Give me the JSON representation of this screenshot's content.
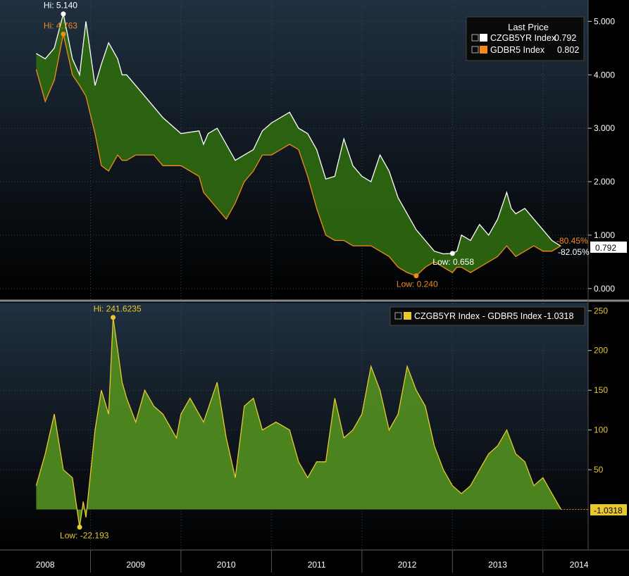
{
  "chart_data": [
    {
      "type": "area",
      "panel": "top",
      "legend": {
        "title": "Last Price",
        "placement": "top-right",
        "entries": [
          {
            "name": "CZGB5YR Index",
            "value": "0.792",
            "color": "#ffffff"
          },
          {
            "name": "GDBR5 Index",
            "value": "0.802",
            "color": "#f28a1e"
          }
        ]
      },
      "ylim": [
        -0.2,
        5.4
      ],
      "y_ticks": [
        "5.000",
        "4.000",
        "3.000",
        "2.000",
        "1.000",
        "0.000"
      ],
      "y_tick_values": [
        5,
        4,
        3,
        2,
        1,
        0
      ],
      "series": [
        {
          "name": "CZGB5YR Index",
          "color": "#ffffff",
          "x": [
            2007.9,
            2008.0,
            2008.1,
            2008.2,
            2008.3,
            2008.38,
            2008.45,
            2008.55,
            2008.62,
            2008.7,
            2008.8,
            2008.85,
            2008.9,
            2009.0,
            2009.1,
            2009.2,
            2009.3,
            2009.5,
            2009.7,
            2009.75,
            2009.8,
            2009.9,
            2010.0,
            2010.1,
            2010.2,
            2010.3,
            2010.4,
            2010.5,
            2010.6,
            2010.7,
            2010.8,
            2010.9,
            2011.0,
            2011.1,
            2011.2,
            2011.3,
            2011.4,
            2011.5,
            2011.6,
            2011.7,
            2011.8,
            2011.9,
            2012.0,
            2012.1,
            2012.2,
            2012.3,
            2012.4,
            2012.5,
            2012.55,
            2012.6,
            2012.7,
            2012.8,
            2012.9,
            2013.0,
            2013.1,
            2013.15,
            2013.2,
            2013.3,
            2013.4,
            2013.5,
            2013.6,
            2013.7
          ],
          "values": [
            4.4,
            4.3,
            4.5,
            5.14,
            4.3,
            4.0,
            5.0,
            3.8,
            4.2,
            4.6,
            4.3,
            4.0,
            4.0,
            3.8,
            3.6,
            3.4,
            3.2,
            2.9,
            2.95,
            2.7,
            2.9,
            3.0,
            2.7,
            2.4,
            2.5,
            2.6,
            2.95,
            3.1,
            3.2,
            3.3,
            3.0,
            2.9,
            2.6,
            2.05,
            2.1,
            2.8,
            2.3,
            2.1,
            2.0,
            2.5,
            2.2,
            1.7,
            1.4,
            1.1,
            0.9,
            0.7,
            0.65,
            0.658,
            0.7,
            1.0,
            0.9,
            1.2,
            1.0,
            1.3,
            1.8,
            1.5,
            1.4,
            1.5,
            1.3,
            1.1,
            0.9,
            0.792
          ]
        },
        {
          "name": "GDBR5 Index",
          "color": "#f28a1e",
          "x": [
            2007.9,
            2008.0,
            2008.1,
            2008.2,
            2008.3,
            2008.38,
            2008.45,
            2008.55,
            2008.62,
            2008.7,
            2008.8,
            2008.85,
            2008.9,
            2009.0,
            2009.1,
            2009.2,
            2009.3,
            2009.5,
            2009.7,
            2009.75,
            2009.8,
            2009.9,
            2010.0,
            2010.1,
            2010.2,
            2010.3,
            2010.4,
            2010.5,
            2010.6,
            2010.7,
            2010.8,
            2010.9,
            2011.0,
            2011.1,
            2011.2,
            2011.3,
            2011.4,
            2011.5,
            2011.6,
            2011.7,
            2011.8,
            2011.9,
            2012.0,
            2012.1,
            2012.2,
            2012.3,
            2012.4,
            2012.5,
            2012.55,
            2012.6,
            2012.7,
            2012.8,
            2012.9,
            2013.0,
            2013.1,
            2013.15,
            2013.2,
            2013.3,
            2013.4,
            2013.5,
            2013.6,
            2013.7
          ],
          "values": [
            4.1,
            3.5,
            3.9,
            4.763,
            4.0,
            3.8,
            3.6,
            2.9,
            2.3,
            2.2,
            2.5,
            2.4,
            2.4,
            2.5,
            2.5,
            2.5,
            2.3,
            2.3,
            2.1,
            1.8,
            1.7,
            1.5,
            1.3,
            1.6,
            2.0,
            2.2,
            2.5,
            2.5,
            2.6,
            2.7,
            2.6,
            2.1,
            1.5,
            1.0,
            0.9,
            0.9,
            0.8,
            0.8,
            0.8,
            0.7,
            0.6,
            0.4,
            0.3,
            0.24,
            0.4,
            0.5,
            0.4,
            0.3,
            0.4,
            0.4,
            0.3,
            0.4,
            0.5,
            0.6,
            0.8,
            0.7,
            0.6,
            0.7,
            0.8,
            0.7,
            0.7,
            0.802
          ]
        }
      ],
      "annotations": [
        {
          "text": "Hi: 5.140",
          "x": 2008.2,
          "y": 5.14,
          "color": "#ffffff"
        },
        {
          "text": "Hi: 4.763",
          "x": 2008.2,
          "y": 4.763,
          "color": "#f28a1e"
        },
        {
          "text": "Low: 0.658",
          "x": 2012.5,
          "y": 0.658,
          "color": "#ffffff"
        },
        {
          "text": "Low: 0.240",
          "x": 2012.1,
          "y": 0.24,
          "color": "#f28a1e"
        },
        {
          "text": "-80.45%",
          "color": "#f28a1e"
        },
        {
          "text": "-82.05%",
          "color": "#ffffff"
        }
      ],
      "last_value_tag": "0.792"
    },
    {
      "type": "area",
      "panel": "bottom",
      "legend": {
        "placement": "top-right",
        "entries": [
          {
            "name": "CZGB5YR Index - GDBR5 Index",
            "value": "-1.0318",
            "color": "#e8c830"
          }
        ]
      },
      "ylim": [
        -50,
        260
      ],
      "y_ticks": [
        "250",
        "200",
        "150",
        "100",
        "50"
      ],
      "y_tick_values": [
        250,
        200,
        150,
        100,
        50
      ],
      "series": [
        {
          "name": "CZGB5YR Index - GDBR5 Index",
          "color": "#e8c830",
          "x": [
            2007.9,
            2008.0,
            2008.1,
            2008.2,
            2008.3,
            2008.38,
            2008.42,
            2008.45,
            2008.55,
            2008.62,
            2008.7,
            2008.75,
            2008.85,
            2008.9,
            2009.0,
            2009.1,
            2009.2,
            2009.3,
            2009.45,
            2009.5,
            2009.6,
            2009.75,
            2009.9,
            2010.0,
            2010.1,
            2010.2,
            2010.3,
            2010.4,
            2010.55,
            2010.7,
            2010.8,
            2010.9,
            2011.0,
            2011.1,
            2011.2,
            2011.3,
            2011.4,
            2011.5,
            2011.6,
            2011.7,
            2011.8,
            2011.9,
            2012.0,
            2012.1,
            2012.2,
            2012.3,
            2012.4,
            2012.5,
            2012.6,
            2012.7,
            2012.8,
            2012.9,
            2013.0,
            2013.1,
            2013.2,
            2013.3,
            2013.4,
            2013.5,
            2013.6,
            2013.7
          ],
          "values": [
            30,
            70,
            120,
            50,
            40,
            -22.193,
            10,
            -10,
            100,
            150,
            120,
            241.6235,
            160,
            140,
            110,
            150,
            130,
            120,
            90,
            120,
            140,
            110,
            160,
            90,
            40,
            130,
            140,
            100,
            110,
            100,
            60,
            40,
            60,
            60,
            140,
            90,
            100,
            120,
            180,
            150,
            100,
            120,
            180,
            150,
            130,
            80,
            50,
            30,
            20,
            30,
            50,
            70,
            80,
            100,
            70,
            60,
            30,
            40,
            20,
            0
          ]
        }
      ],
      "annotations": [
        {
          "text": "Hi: 241.6235",
          "x": 2008.75,
          "y": 241.6235,
          "color": "#e8c830"
        },
        {
          "text": "Low: -22.193",
          "x": 2008.38,
          "y": -22.193,
          "color": "#e8c830"
        }
      ],
      "last_value_tag": "-1.0318"
    }
  ],
  "x_axis": {
    "labels": [
      "2008",
      "2009",
      "2010",
      "2011",
      "2012",
      "2013",
      "2014"
    ],
    "label_years": [
      2008.0,
      2009.0,
      2010.0,
      2011.0,
      2012.0,
      2013.0,
      2014.0
    ],
    "xlim": [
      2007.5,
      2014.0
    ]
  }
}
